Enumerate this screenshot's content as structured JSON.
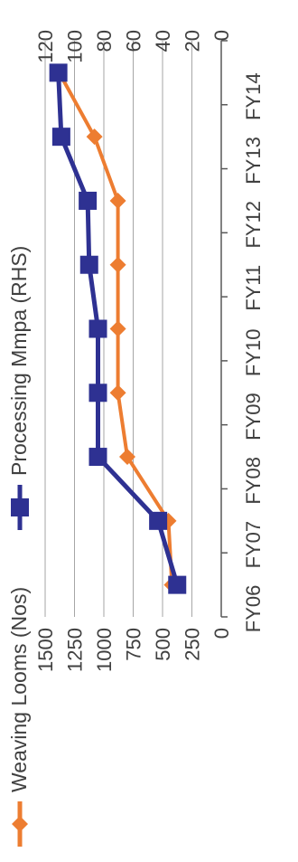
{
  "chart_data": {
    "type": "line",
    "orientation": "rotated-90-ccw",
    "categories": [
      "FY06",
      "FY07",
      "FY08",
      "FY09",
      "FY10",
      "FY11",
      "FY12",
      "FY13",
      "FY14"
    ],
    "series": [
      {
        "name": "Weaving Looms (Nos)",
        "axis": "left",
        "color": "#ed7d31",
        "marker": "diamond",
        "values": [
          420,
          450,
          800,
          880,
          880,
          880,
          880,
          1080,
          1380
        ]
      },
      {
        "name": "Processing Mmpa (RHS)",
        "axis": "right",
        "color": "#2e3192",
        "marker": "square",
        "values": [
          30,
          43,
          84,
          84,
          84,
          90,
          91,
          109,
          111
        ]
      }
    ],
    "left_axis": {
      "min": 0,
      "max": 1500,
      "ticks": [
        "0",
        "250",
        "500",
        "750",
        "1000",
        "1250",
        "1500"
      ]
    },
    "right_axis": {
      "min": 0,
      "max": 120,
      "ticks": [
        "0",
        "20",
        "40",
        "60",
        "80",
        "100",
        "120"
      ]
    },
    "gridlines": true,
    "legend_position": "top",
    "title": "",
    "xlabel": "",
    "ylabel": ""
  }
}
